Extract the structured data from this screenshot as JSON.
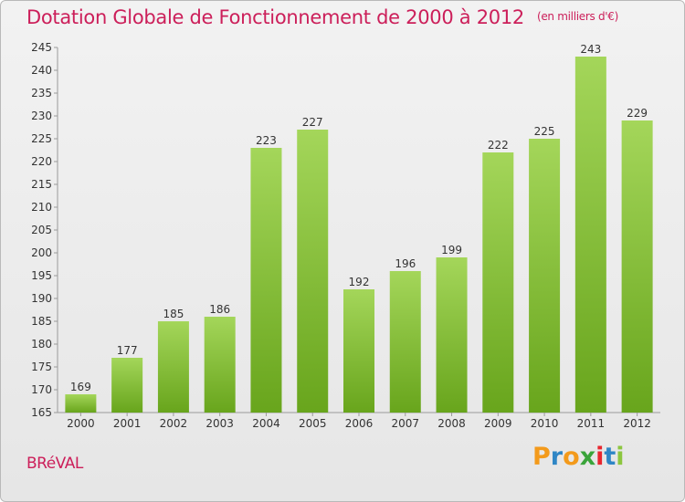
{
  "title": "Dotation Globale de Fonctionnement de 2000 à 2012",
  "unit_note": "(en milliers d'€)",
  "commune": "BRéVAL",
  "logo": {
    "letters": [
      "P",
      "r",
      "o",
      "x",
      "i",
      "t",
      "i"
    ],
    "colors": [
      "#f39a1b",
      "#2f86c5",
      "#f39a1b",
      "#3aa43a",
      "#e8262f",
      "#2f86c5",
      "#8cc63f"
    ]
  },
  "colors": {
    "bar_light": "#a4d65a",
    "bar_dark": "#68a51c",
    "title": "#cc1f5a"
  },
  "chart_data": {
    "type": "bar",
    "title": "Dotation Globale de Fonctionnement de 2000 à 2012",
    "categories": [
      "2000",
      "2001",
      "2002",
      "2003",
      "2004",
      "2005",
      "2006",
      "2007",
      "2008",
      "2009",
      "2010",
      "2011",
      "2012"
    ],
    "values": [
      169,
      177,
      185,
      186,
      223,
      227,
      192,
      196,
      199,
      222,
      225,
      243,
      229
    ],
    "ylim": [
      165,
      245
    ],
    "yticks": [
      165,
      170,
      175,
      180,
      185,
      190,
      195,
      200,
      205,
      210,
      215,
      220,
      225,
      230,
      235,
      240,
      245
    ],
    "grid": false,
    "data_labels": true
  }
}
